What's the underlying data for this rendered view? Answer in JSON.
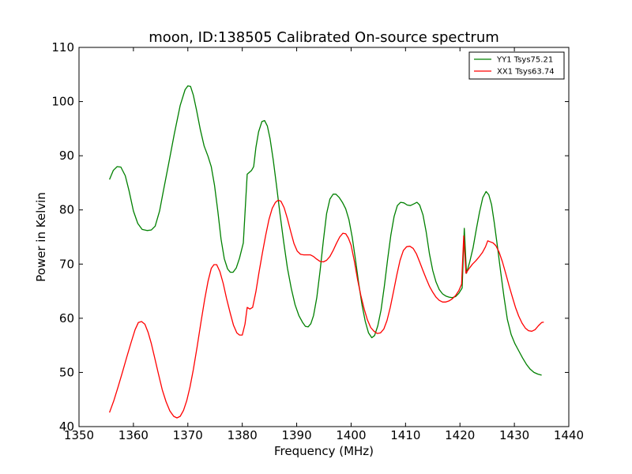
{
  "chart_data": {
    "type": "line",
    "title": "moon, ID:138505 Calibrated On-source spectrum",
    "xlabel": "Frequency (MHz)",
    "ylabel": "Power in Kelvin",
    "xlim": [
      1350,
      1440
    ],
    "ylim": [
      40,
      110
    ],
    "xticks": [
      1350,
      1360,
      1370,
      1380,
      1390,
      1400,
      1410,
      1420,
      1430,
      1440
    ],
    "yticks": [
      40,
      50,
      60,
      70,
      80,
      90,
      100,
      110
    ],
    "grid": false,
    "legend_position": "top-right",
    "series": [
      {
        "name": "YY1 Tsys75.21",
        "color": "#008000",
        "points": [
          [
            1355.6,
            85.6
          ],
          [
            1356.3,
            87.3
          ],
          [
            1357.0,
            88.0
          ],
          [
            1357.7,
            87.9
          ],
          [
            1358.5,
            86.3
          ],
          [
            1359.2,
            83.5
          ],
          [
            1360.0,
            79.8
          ],
          [
            1360.8,
            77.5
          ],
          [
            1361.6,
            76.4
          ],
          [
            1362.5,
            76.2
          ],
          [
            1363.3,
            76.3
          ],
          [
            1364.0,
            77.0
          ],
          [
            1364.8,
            79.8
          ],
          [
            1365.5,
            83.5
          ],
          [
            1366.5,
            88.7
          ],
          [
            1367.5,
            94.0
          ],
          [
            1368.6,
            99.3
          ],
          [
            1369.5,
            102.2
          ],
          [
            1370.0,
            102.9
          ],
          [
            1370.5,
            102.8
          ],
          [
            1371.0,
            101.2
          ],
          [
            1371.6,
            98.4
          ],
          [
            1372.3,
            94.8
          ],
          [
            1373.0,
            91.8
          ],
          [
            1373.7,
            89.9
          ],
          [
            1374.3,
            88.0
          ],
          [
            1374.9,
            84.6
          ],
          [
            1375.5,
            79.8
          ],
          [
            1376.1,
            74.6
          ],
          [
            1376.7,
            71.0
          ],
          [
            1377.3,
            69.1
          ],
          [
            1377.8,
            68.5
          ],
          [
            1378.3,
            68.5
          ],
          [
            1378.9,
            69.3
          ],
          [
            1379.5,
            71.1
          ],
          [
            1380.2,
            73.9
          ],
          [
            1380.9,
            86.6
          ],
          [
            1381.7,
            87.3
          ],
          [
            1382.1,
            88.0
          ],
          [
            1382.5,
            91.5
          ],
          [
            1383.0,
            94.4
          ],
          [
            1383.6,
            96.3
          ],
          [
            1384.1,
            96.5
          ],
          [
            1384.6,
            95.5
          ],
          [
            1385.1,
            93.2
          ],
          [
            1385.7,
            89.2
          ],
          [
            1386.3,
            84.4
          ],
          [
            1386.9,
            79.5
          ],
          [
            1387.6,
            74.2
          ],
          [
            1388.3,
            69.3
          ],
          [
            1389.0,
            65.5
          ],
          [
            1389.7,
            62.5
          ],
          [
            1390.4,
            60.5
          ],
          [
            1391.1,
            59.2
          ],
          [
            1391.6,
            58.5
          ],
          [
            1392.1,
            58.4
          ],
          [
            1392.6,
            59.0
          ],
          [
            1393.1,
            60.5
          ],
          [
            1393.7,
            63.8
          ],
          [
            1394.3,
            68.8
          ],
          [
            1394.9,
            74.3
          ],
          [
            1395.5,
            79.3
          ],
          [
            1396.1,
            82.0
          ],
          [
            1396.7,
            82.9
          ],
          [
            1397.2,
            82.9
          ],
          [
            1397.8,
            82.3
          ],
          [
            1398.4,
            81.4
          ],
          [
            1399.0,
            80.2
          ],
          [
            1399.6,
            78.2
          ],
          [
            1400.2,
            75.0
          ],
          [
            1400.8,
            70.8
          ],
          [
            1401.4,
            66.4
          ],
          [
            1402.0,
            62.5
          ],
          [
            1402.6,
            59.4
          ],
          [
            1403.2,
            57.3
          ],
          [
            1403.8,
            56.4
          ],
          [
            1404.3,
            56.8
          ],
          [
            1404.9,
            58.6
          ],
          [
            1405.5,
            61.5
          ],
          [
            1406.1,
            65.9
          ],
          [
            1406.7,
            70.8
          ],
          [
            1407.3,
            75.3
          ],
          [
            1407.9,
            78.8
          ],
          [
            1408.5,
            80.8
          ],
          [
            1409.1,
            81.4
          ],
          [
            1409.7,
            81.3
          ],
          [
            1410.3,
            80.9
          ],
          [
            1410.9,
            80.8
          ],
          [
            1411.5,
            81.1
          ],
          [
            1412.1,
            81.4
          ],
          [
            1412.6,
            80.9
          ],
          [
            1413.2,
            79.1
          ],
          [
            1413.8,
            75.9
          ],
          [
            1414.4,
            71.9
          ],
          [
            1415.0,
            68.8
          ],
          [
            1415.6,
            66.7
          ],
          [
            1416.2,
            65.3
          ],
          [
            1416.8,
            64.5
          ],
          [
            1417.4,
            64.1
          ],
          [
            1418.0,
            63.9
          ],
          [
            1418.6,
            63.8
          ],
          [
            1419.2,
            64.0
          ],
          [
            1419.8,
            64.6
          ],
          [
            1420.4,
            65.6
          ],
          [
            1420.8,
            76.6
          ],
          [
            1421.2,
            68.3
          ],
          [
            1421.8,
            70.4
          ],
          [
            1422.4,
            73.0
          ],
          [
            1423.0,
            76.4
          ],
          [
            1423.6,
            79.6
          ],
          [
            1424.2,
            82.3
          ],
          [
            1424.8,
            83.4
          ],
          [
            1425.3,
            82.8
          ],
          [
            1425.8,
            81.0
          ],
          [
            1426.3,
            77.7
          ],
          [
            1426.9,
            73.1
          ],
          [
            1427.5,
            68.4
          ],
          [
            1428.1,
            63.9
          ],
          [
            1428.7,
            59.8
          ],
          [
            1429.4,
            57.0
          ],
          [
            1430.1,
            55.3
          ],
          [
            1430.8,
            54.0
          ],
          [
            1431.5,
            52.7
          ],
          [
            1432.2,
            51.5
          ],
          [
            1432.9,
            50.6
          ],
          [
            1433.6,
            50.0
          ],
          [
            1434.3,
            49.7
          ],
          [
            1435.0,
            49.5
          ]
        ]
      },
      {
        "name": "XX1 Tsys63.74",
        "color": "#ff0000",
        "points": [
          [
            1355.6,
            42.6
          ],
          [
            1356.4,
            44.8
          ],
          [
            1357.2,
            47.4
          ],
          [
            1358.0,
            50.1
          ],
          [
            1358.8,
            52.9
          ],
          [
            1359.6,
            55.6
          ],
          [
            1360.3,
            57.9
          ],
          [
            1360.9,
            59.2
          ],
          [
            1361.5,
            59.4
          ],
          [
            1362.1,
            58.9
          ],
          [
            1362.7,
            57.4
          ],
          [
            1363.3,
            55.3
          ],
          [
            1363.9,
            52.7
          ],
          [
            1364.6,
            49.7
          ],
          [
            1365.3,
            46.8
          ],
          [
            1366.0,
            44.6
          ],
          [
            1366.7,
            42.9
          ],
          [
            1367.4,
            41.9
          ],
          [
            1368.0,
            41.6
          ],
          [
            1368.6,
            41.9
          ],
          [
            1369.2,
            43.0
          ],
          [
            1369.8,
            44.8
          ],
          [
            1370.4,
            47.3
          ],
          [
            1371.0,
            50.5
          ],
          [
            1371.7,
            54.7
          ],
          [
            1372.4,
            59.2
          ],
          [
            1373.1,
            63.5
          ],
          [
            1373.7,
            66.8
          ],
          [
            1374.3,
            69.2
          ],
          [
            1374.8,
            69.9
          ],
          [
            1375.3,
            69.9
          ],
          [
            1375.9,
            68.6
          ],
          [
            1376.5,
            66.4
          ],
          [
            1377.1,
            63.7
          ],
          [
            1377.8,
            60.9
          ],
          [
            1378.4,
            58.7
          ],
          [
            1379.0,
            57.3
          ],
          [
            1379.5,
            56.9
          ],
          [
            1380.0,
            56.9
          ],
          [
            1380.5,
            58.9
          ],
          [
            1380.9,
            62.0
          ],
          [
            1381.4,
            61.7
          ],
          [
            1381.9,
            62.0
          ],
          [
            1382.5,
            64.9
          ],
          [
            1383.1,
            68.6
          ],
          [
            1383.7,
            72.1
          ],
          [
            1384.3,
            75.3
          ],
          [
            1384.9,
            78.2
          ],
          [
            1385.5,
            80.3
          ],
          [
            1386.1,
            81.4
          ],
          [
            1386.6,
            81.8
          ],
          [
            1387.1,
            81.6
          ],
          [
            1387.7,
            80.4
          ],
          [
            1388.3,
            78.4
          ],
          [
            1388.9,
            76.0
          ],
          [
            1389.5,
            73.8
          ],
          [
            1390.1,
            72.4
          ],
          [
            1390.7,
            71.8
          ],
          [
            1391.3,
            71.7
          ],
          [
            1391.9,
            71.7
          ],
          [
            1392.5,
            71.7
          ],
          [
            1393.1,
            71.4
          ],
          [
            1393.7,
            70.9
          ],
          [
            1394.3,
            70.5
          ],
          [
            1394.9,
            70.4
          ],
          [
            1395.5,
            70.7
          ],
          [
            1396.1,
            71.4
          ],
          [
            1396.7,
            72.5
          ],
          [
            1397.3,
            73.8
          ],
          [
            1397.9,
            75.0
          ],
          [
            1398.5,
            75.7
          ],
          [
            1399.0,
            75.6
          ],
          [
            1399.5,
            74.8
          ],
          [
            1400.0,
            73.5
          ],
          [
            1400.6,
            70.5
          ],
          [
            1401.2,
            67.1
          ],
          [
            1401.8,
            64.2
          ],
          [
            1402.4,
            61.7
          ],
          [
            1403.0,
            59.7
          ],
          [
            1403.6,
            58.3
          ],
          [
            1404.2,
            57.6
          ],
          [
            1404.8,
            57.2
          ],
          [
            1405.4,
            57.3
          ],
          [
            1406.0,
            58.0
          ],
          [
            1406.6,
            59.6
          ],
          [
            1407.2,
            62.0
          ],
          [
            1407.8,
            65.0
          ],
          [
            1408.4,
            68.0
          ],
          [
            1409.0,
            70.7
          ],
          [
            1409.6,
            72.5
          ],
          [
            1410.2,
            73.2
          ],
          [
            1410.8,
            73.3
          ],
          [
            1411.4,
            72.9
          ],
          [
            1412.0,
            71.9
          ],
          [
            1412.6,
            70.4
          ],
          [
            1413.2,
            68.8
          ],
          [
            1413.8,
            67.3
          ],
          [
            1414.4,
            65.9
          ],
          [
            1415.0,
            64.8
          ],
          [
            1415.6,
            63.9
          ],
          [
            1416.2,
            63.3
          ],
          [
            1416.8,
            63.0
          ],
          [
            1417.4,
            63.0
          ],
          [
            1418.0,
            63.2
          ],
          [
            1418.6,
            63.6
          ],
          [
            1419.2,
            64.2
          ],
          [
            1419.8,
            65.1
          ],
          [
            1420.3,
            66.3
          ],
          [
            1420.7,
            75.2
          ],
          [
            1421.1,
            68.3
          ],
          [
            1421.7,
            69.2
          ],
          [
            1422.3,
            70.0
          ],
          [
            1422.9,
            70.6
          ],
          [
            1423.5,
            71.3
          ],
          [
            1424.1,
            72.1
          ],
          [
            1424.7,
            73.2
          ],
          [
            1425.1,
            74.3
          ],
          [
            1425.6,
            74.1
          ],
          [
            1426.1,
            73.9
          ],
          [
            1426.6,
            73.4
          ],
          [
            1427.2,
            72.2
          ],
          [
            1427.8,
            70.4
          ],
          [
            1428.4,
            68.3
          ],
          [
            1429.0,
            66.1
          ],
          [
            1429.6,
            64.0
          ],
          [
            1430.2,
            62.0
          ],
          [
            1430.8,
            60.4
          ],
          [
            1431.4,
            59.1
          ],
          [
            1432.0,
            58.2
          ],
          [
            1432.6,
            57.7
          ],
          [
            1433.2,
            57.6
          ],
          [
            1433.8,
            57.9
          ],
          [
            1434.4,
            58.6
          ],
          [
            1435.0,
            59.2
          ],
          [
            1435.4,
            59.3
          ]
        ]
      }
    ]
  }
}
